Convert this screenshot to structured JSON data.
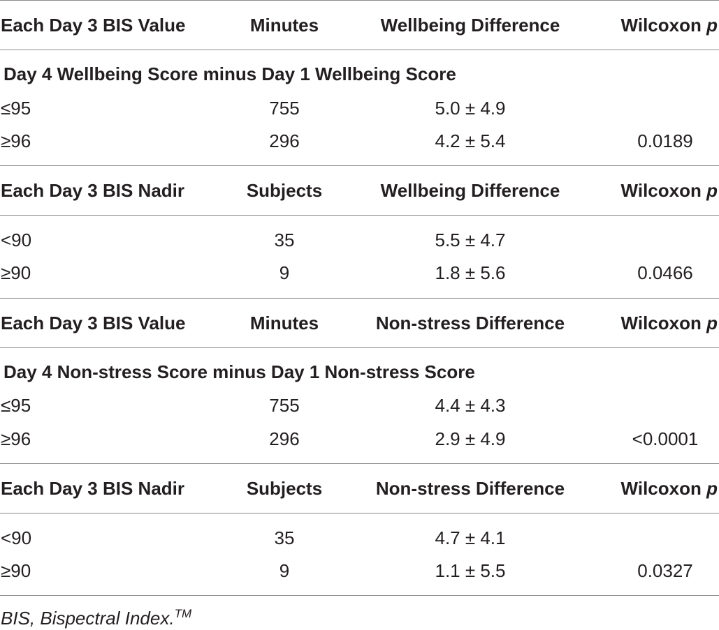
{
  "table": {
    "blocks": [
      {
        "header": {
          "col1": "Each Day 3 BIS Value",
          "col2": "Minutes",
          "col3": "Wellbeing Difference",
          "col4_text": "Wilcoxon",
          "col4_italic": "p"
        },
        "section_title": "Day 4 Wellbeing Score minus Day 1 Wellbeing Score",
        "rows": [
          {
            "threshold": "≤95",
            "count": "755",
            "difference": "5.0 ± 4.9",
            "p": ""
          },
          {
            "threshold": "≥96",
            "count": "296",
            "difference": "4.2 ± 5.4",
            "p": "0.0189"
          }
        ]
      },
      {
        "header": {
          "col1": "Each Day 3 BIS Nadir",
          "col2": "Subjects",
          "col3": "Wellbeing Difference",
          "col4_text": "Wilcoxon",
          "col4_italic": "p"
        },
        "rows": [
          {
            "threshold": "<90",
            "count": "35",
            "difference": "5.5 ± 4.7",
            "p": ""
          },
          {
            "threshold": "≥90",
            "count": "9",
            "difference": "1.8 ± 5.6",
            "p": "0.0466"
          }
        ]
      },
      {
        "header": {
          "col1": "Each Day 3 BIS Value",
          "col2": "Minutes",
          "col3": "Non-stress Difference",
          "col4_text": "Wilcoxon",
          "col4_italic": "p"
        },
        "section_title": "Day 4 Non-stress Score minus Day 1 Non-stress Score",
        "rows": [
          {
            "threshold": "≤95",
            "count": "755",
            "difference": "4.4 ± 4.3",
            "p": ""
          },
          {
            "threshold": "≥96",
            "count": "296",
            "difference": "2.9 ± 4.9",
            "p": "<0.0001"
          }
        ]
      },
      {
        "header": {
          "col1": "Each Day 3 BIS Nadir",
          "col2": "Subjects",
          "col3": "Non-stress Difference",
          "col4_text": "Wilcoxon",
          "col4_italic": "p"
        },
        "rows": [
          {
            "threshold": "<90",
            "count": "35",
            "difference": "4.7 ± 4.1",
            "p": ""
          },
          {
            "threshold": "≥90",
            "count": "9",
            "difference": "1.1 ± 5.5",
            "p": "0.0327"
          }
        ]
      }
    ]
  },
  "footnote": {
    "text": "BIS, Bispectral Index.",
    "superscript": "TM"
  }
}
